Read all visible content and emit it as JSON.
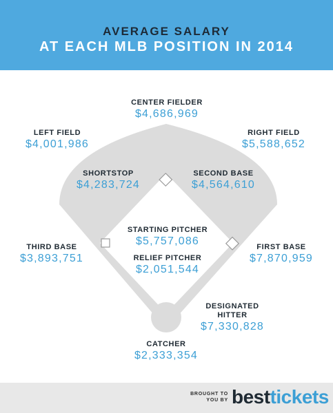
{
  "header": {
    "title_line1": "AVERAGE SALARY",
    "title_line2": "AT EACH MLB POSITION IN 2014"
  },
  "colors": {
    "header_bg": "#4fa9df",
    "value_text": "#3c9fd5",
    "field_gray": "#dcdcdc"
  },
  "positions": {
    "center_field": {
      "label": "CENTER FIELDER",
      "value": "$4,686,969"
    },
    "left_field": {
      "label": "LEFT FIELD",
      "value": "$4,001,986"
    },
    "right_field": {
      "label": "RIGHT FIELD",
      "value": "$5,588,652"
    },
    "shortstop": {
      "label": "SHORTSTOP",
      "value": "$4,283,724"
    },
    "second_base": {
      "label": "SECOND BASE",
      "value": "$4,564,610"
    },
    "starting_pitcher": {
      "label": "STARTING  PITCHER",
      "value": "$5,757,086"
    },
    "relief_pitcher": {
      "label": "RELIEF PITCHER",
      "value": "$2,051,544"
    },
    "third_base": {
      "label": "THIRD BASE",
      "value": "$3,893,751"
    },
    "first_base": {
      "label": "FIRST BASE",
      "value": "$7,870,959"
    },
    "designated_hitter": {
      "label_line1": "DESIGNATED",
      "label_line2": "HITTER",
      "value": "$7,330,828"
    },
    "catcher": {
      "label": "CATCHER",
      "value": "$2,333,354"
    }
  },
  "footer": {
    "brought_line1": "BROUGHT TO",
    "brought_line2": "YOU BY",
    "brand_part1": "best",
    "brand_part2": "tickets"
  }
}
